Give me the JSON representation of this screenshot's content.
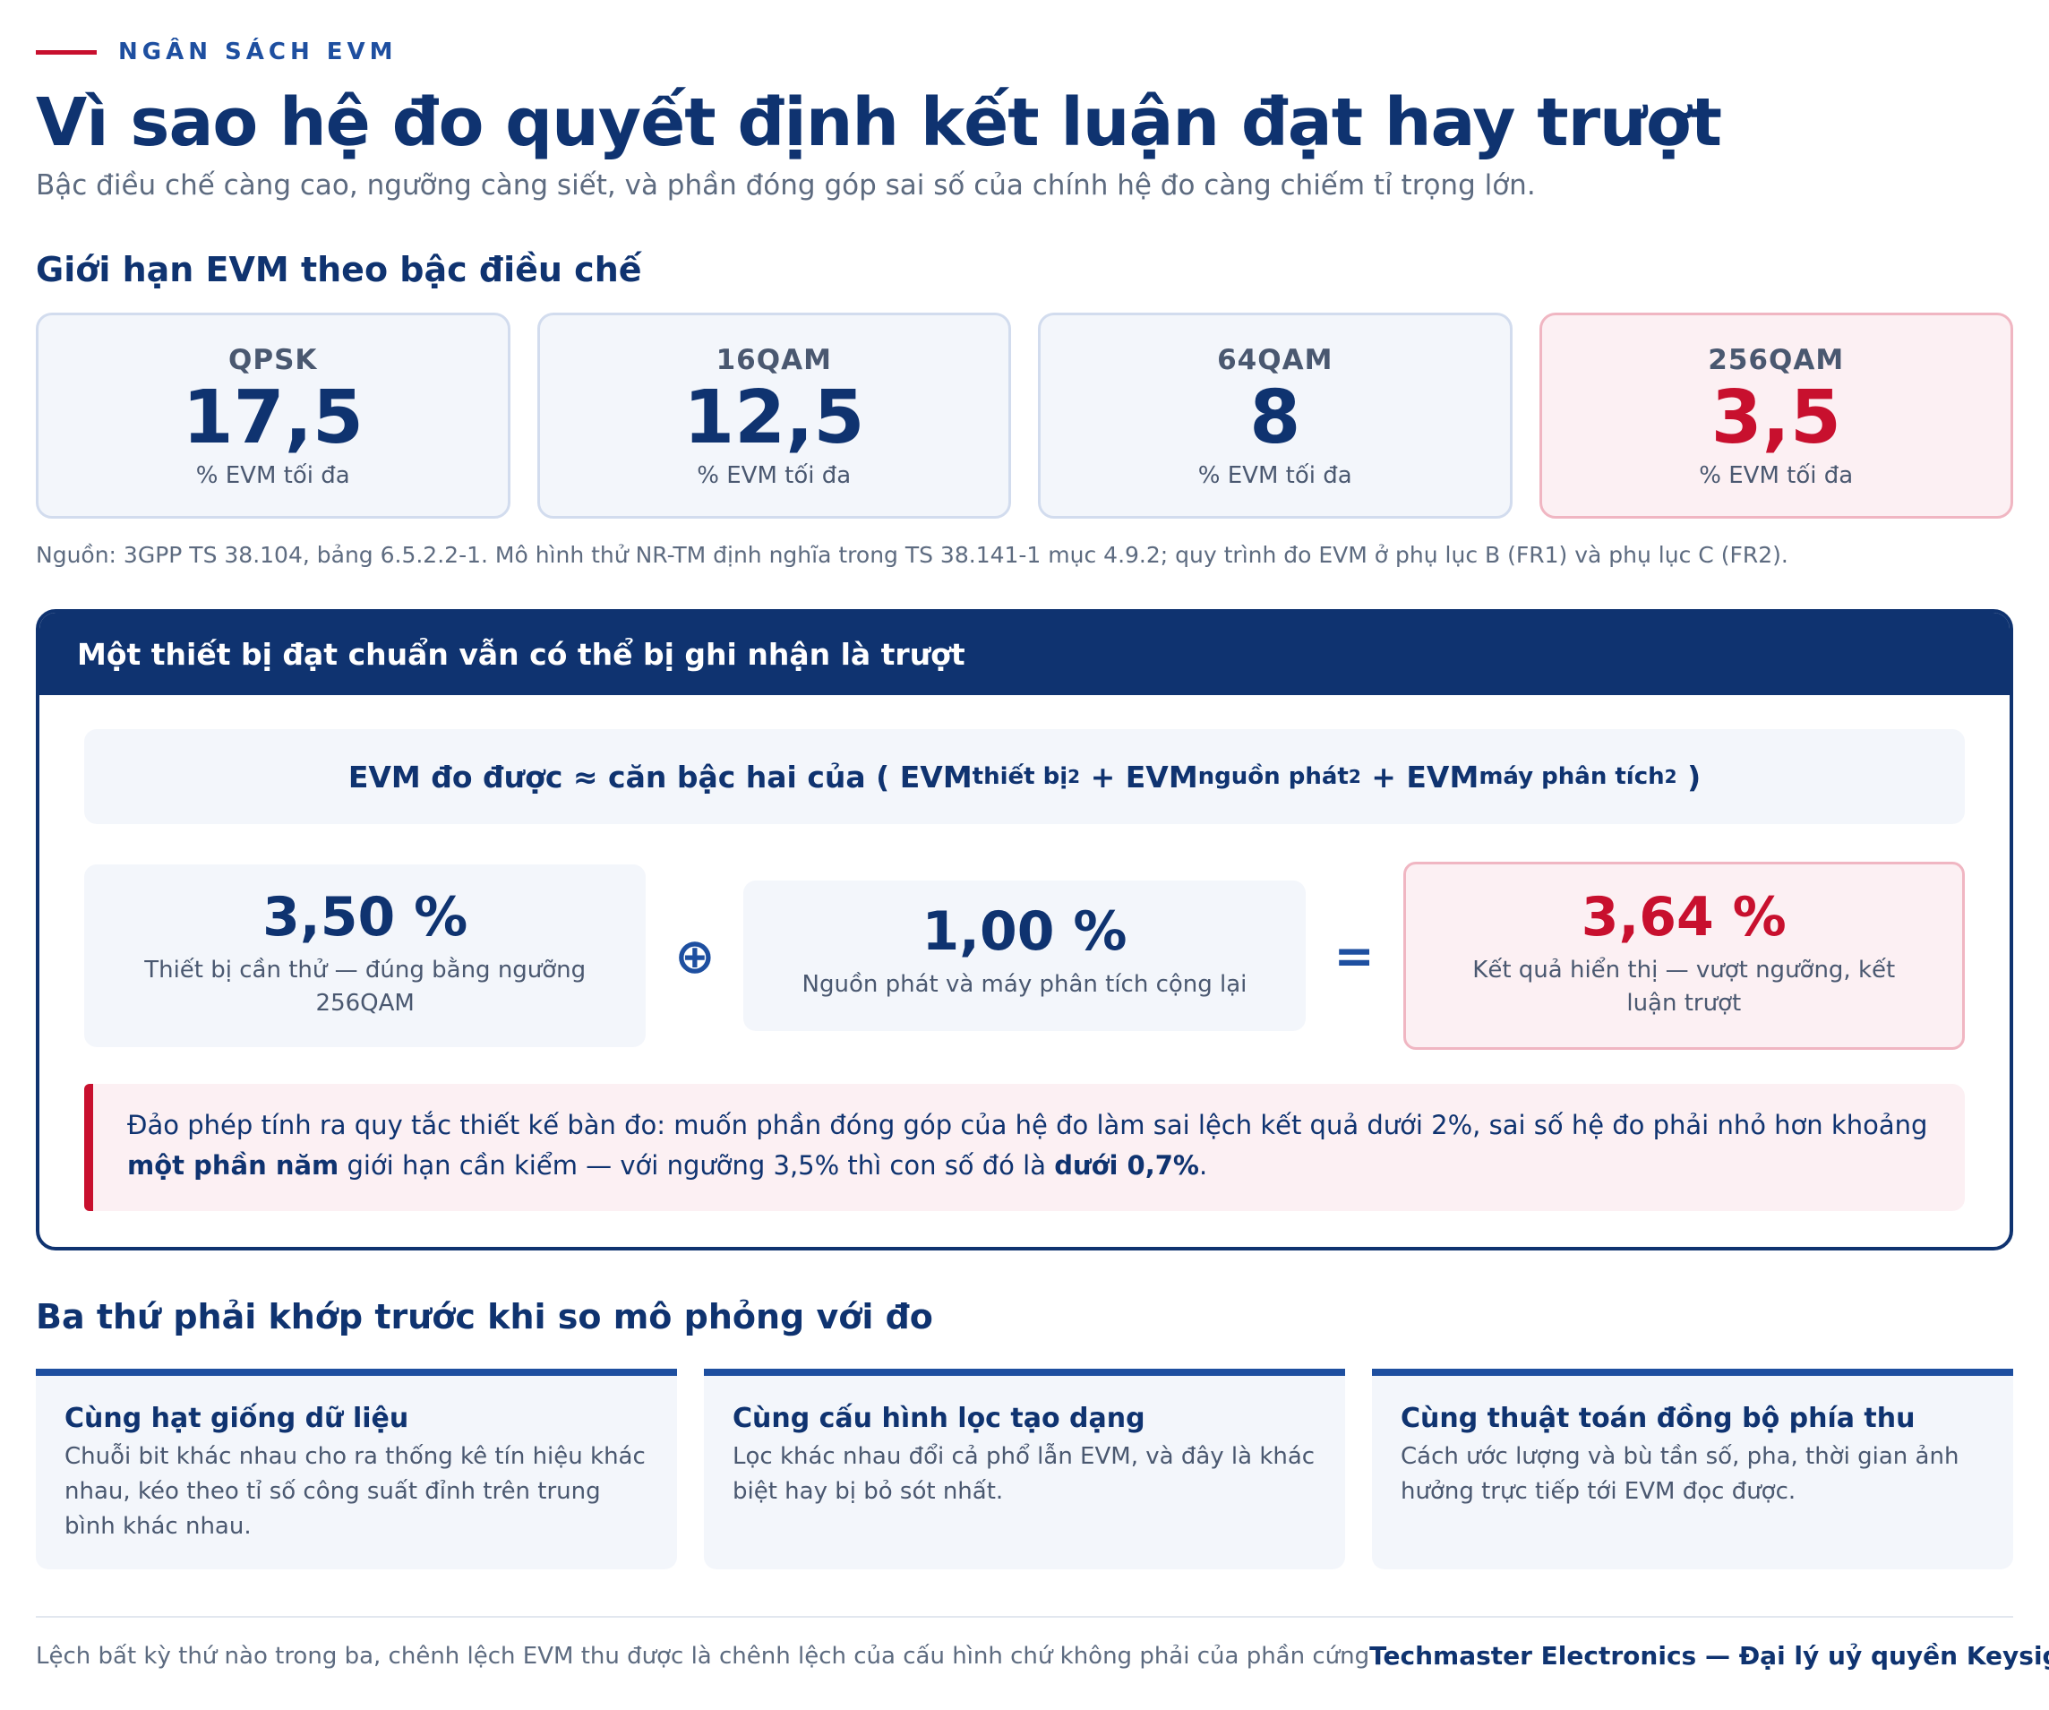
{
  "header": {
    "eyebrow": "NGÂN SÁCH EVM",
    "title": "Vì sao hệ đo quyết định kết luận đạt hay trượt",
    "subtitle": "Bậc điều chế càng cao, ngưỡng càng siết, và phần đóng góp sai số của chính hệ đo càng chiếm tỉ trọng lớn."
  },
  "limits": {
    "heading": "Giới hạn EVM theo bậc điều chế",
    "unit": "% EVM tối đa",
    "cards": [
      {
        "name": "QPSK",
        "value": "17,5"
      },
      {
        "name": "16QAM",
        "value": "12,5"
      },
      {
        "name": "64QAM",
        "value": "8"
      },
      {
        "name": "256QAM",
        "value": "3,5"
      }
    ],
    "highlight_color": "#c8102e",
    "source": "Nguồn: 3GPP TS 38.104, bảng 6.5.2.2-1. Mô hình thử NR-TM định nghĩa trong TS 38.141-1 mục 4.9.2; quy trình đo EVM ở phụ lục B (FR1) và phụ lục C (FR2)."
  },
  "panel": {
    "title": "Một thiết bị đạt chuẩn vẫn có thể bị ghi nhận là trượt",
    "formula": {
      "lhs": "EVM đo được ≈ căn bậc hai của (",
      "term": "EVM",
      "sub1": "thiết bị",
      "sub2": "nguồn phát",
      "sub3": "máy phân tích",
      "sq": "2",
      "plus": "+",
      "close": ")"
    },
    "calc": {
      "device_value": "3,50 %",
      "device_caption": "Thiết bị cần thử — đúng bằng ngưỡng 256QAM",
      "combine_op": "⊕",
      "system_value": "1,00 %",
      "system_caption": "Nguồn phát và máy phân tích cộng lại",
      "equals_op": "=",
      "result_value": "3,64 %",
      "result_caption": "Kết quả hiển thị — vượt ngưỡng, kết luận trượt"
    },
    "callout": {
      "part1": "Đảo phép tính ra quy tắc thiết kế bàn đo: muốn phần đóng góp của hệ đo làm sai lệch kết quả dưới 2%, sai số hệ đo phải nhỏ hơn khoảng ",
      "bold1": "một phần năm",
      "part2": " giới hạn cần kiểm — với ngưỡng 3,5% thì con số đó là ",
      "bold2": "dưới 0,7%",
      "part3": "."
    }
  },
  "match": {
    "heading": "Ba thứ phải khớp trước khi so mô phỏng với đo",
    "items": [
      {
        "title": "Cùng hạt giống dữ liệu",
        "text": "Chuỗi bit khác nhau cho ra thống kê tín hiệu khác nhau, kéo theo tỉ số công suất đỉnh trên trung bình khác nhau."
      },
      {
        "title": "Cùng cấu hình lọc tạo dạng",
        "text": "Lọc khác nhau đổi cả phổ lẫn EVM, và đây là khác biệt hay bị bỏ sót nhất."
      },
      {
        "title": "Cùng thuật toán đồng bộ phía thu",
        "text": "Cách ước lượng và bù tần số, pha, thời gian ảnh hưởng trực tiếp tới EVM đọc được."
      }
    ]
  },
  "footer": {
    "note": "Lệch bất kỳ thứ nào trong ba, chênh lệch EVM thu được là chênh lệch của cấu hình chứ không phải của phần cứng",
    "brand": "Techmaster Electronics — Đại lý uỷ quyền Keysight"
  }
}
